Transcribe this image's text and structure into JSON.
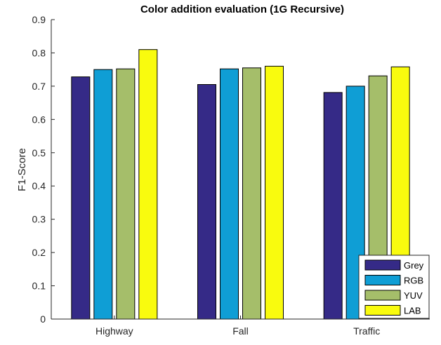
{
  "chart_data": {
    "type": "bar",
    "title": "Color addition evaluation (1G Recursive)",
    "xlabel": "",
    "ylabel": "F1-Score",
    "categories": [
      "Highway",
      "Fall",
      "Traffic"
    ],
    "ylim": [
      0,
      0.9
    ],
    "yticks": [
      0,
      0.1,
      0.2,
      0.3,
      0.4,
      0.5,
      0.6,
      0.7,
      0.8,
      0.9
    ],
    "ytick_labels": [
      "0",
      "0.1",
      "0.2",
      "0.3",
      "0.4",
      "0.5",
      "0.6",
      "0.7",
      "0.8",
      "0.9"
    ],
    "grid": false,
    "legend_position": "bottom-right",
    "series": [
      {
        "name": "Grey",
        "color": "#352a87",
        "values": [
          0.728,
          0.705,
          0.681
        ]
      },
      {
        "name": "RGB",
        "color": "#0f9ed5",
        "values": [
          0.75,
          0.752,
          0.7
        ]
      },
      {
        "name": "YUV",
        "color": "#a5be6a",
        "values": [
          0.752,
          0.755,
          0.731
        ]
      },
      {
        "name": "LAB",
        "color": "#f9fb0e",
        "values": [
          0.81,
          0.76,
          0.758
        ]
      }
    ]
  }
}
